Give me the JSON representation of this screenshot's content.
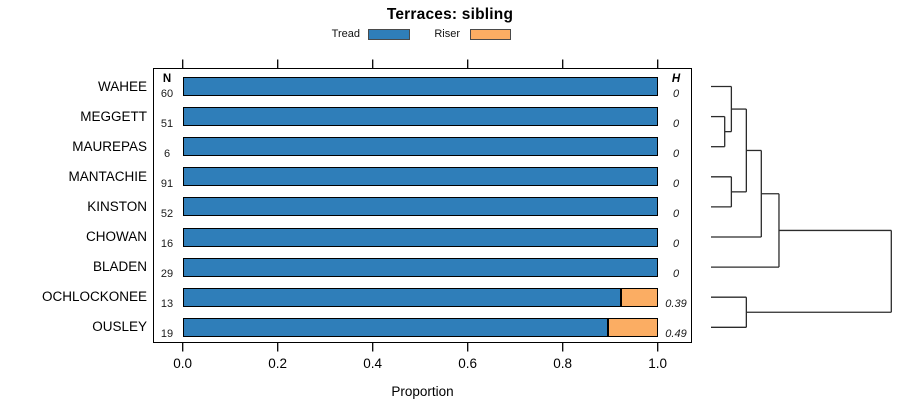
{
  "chart_data": {
    "type": "bar",
    "orientation": "horizontal",
    "stacked": true,
    "grid": false,
    "legend_position": "top",
    "title": "Terraces: sibling",
    "xlabel": "Proportion",
    "xlim": [
      0,
      1
    ],
    "x_ticks": [
      0.0,
      0.2,
      0.4,
      0.6,
      0.8,
      1.0
    ],
    "x_tick_labels": [
      "0.0",
      "0.2",
      "0.4",
      "0.6",
      "0.8",
      "1.0"
    ],
    "categories": [
      "WAHEE",
      "MEGGETT",
      "MAUREPAS",
      "MANTACHIE",
      "KINSTON",
      "CHOWAN",
      "BLADEN",
      "OCHLOCKONEE",
      "OUSLEY"
    ],
    "series": [
      {
        "name": "Tread",
        "color": "#2f7eb9",
        "values": [
          1,
          1,
          1,
          1,
          1,
          1,
          1,
          0.923,
          0.895
        ]
      },
      {
        "name": "Riser",
        "color": "#fbad63",
        "values": [
          0,
          0,
          0,
          0,
          0,
          0,
          0,
          0.077,
          0.105
        ]
      }
    ],
    "n_label": "N",
    "n_values": [
      "60",
      "51",
      "6",
      "91",
      "52",
      "16",
      "29",
      "13",
      "19"
    ],
    "h_label": "H",
    "h_values": [
      "0",
      "0",
      "0",
      "0",
      "0",
      "0",
      "0",
      "0.39",
      "0.49"
    ],
    "dendrogram": {
      "leaves": [
        "WAHEE",
        "MEGGETT",
        "MAUREPAS",
        "MANTACHIE",
        "KINSTON",
        "CHOWAN",
        "BLADEN",
        "OCHLOCKONEE",
        "OUSLEY"
      ],
      "merges": [
        {
          "id": "M1",
          "a": "L1",
          "b": "L2",
          "h": 0.076
        },
        {
          "id": "M2",
          "a": "L0",
          "b": "M1",
          "h": 0.113
        },
        {
          "id": "M3",
          "a": "L3",
          "b": "L4",
          "h": 0.113
        },
        {
          "id": "M4",
          "a": "M2",
          "b": "M3",
          "h": 0.196
        },
        {
          "id": "M5",
          "a": "M4",
          "b": "L5",
          "h": 0.279
        },
        {
          "id": "M6",
          "a": "M5",
          "b": "L6",
          "h": 0.377
        },
        {
          "id": "M7",
          "a": "L7",
          "b": "L8",
          "h": 0.196
        },
        {
          "id": "M8",
          "a": "M6",
          "b": "M7",
          "h": 1.0
        }
      ]
    }
  }
}
